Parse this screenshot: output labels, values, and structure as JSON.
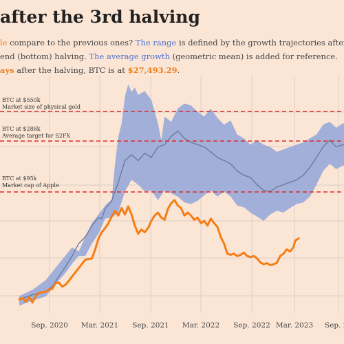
{
  "header": {
    "title": "after the 3rd halving",
    "line1_a": "le",
    "line1_b": " compare to the previous ones? ",
    "line1_c": "The range",
    "line1_d": " is defined by the growth trajectories after",
    "line2_a": "end (bottom) halving. ",
    "line2_b": "The average growth",
    "line2_c": " (geometric mean) is added for reference.",
    "line3_a": "ays",
    "line3_b": " after the halving, BTC is at ",
    "line3_c": "$27,493.29",
    "line3_d": "."
  },
  "colors": {
    "background": "#fbe6d6",
    "range": "#9aaad8",
    "average": "#6b7b9e",
    "current": "#f57d15",
    "reference": "#e02828",
    "grid": "#d9cfc8"
  },
  "chart_data": {
    "type": "line",
    "x_ticks": [
      "Sep. 2020",
      "Mar. 2021",
      "Sep. 2021",
      "Mar. 2022",
      "Sep. 2022",
      "Mar. 2023",
      "Sep. 2"
    ],
    "reference_lines": [
      {
        "line1": "BTC at $550k",
        "line2": "Market size of physical gold"
      },
      {
        "line1": "BTC at $288k",
        "line2": "Average target for S2FX"
      },
      {
        "line1": "BTC at $95k",
        "line2": "Market cap of Apple"
      }
    ],
    "series": [
      {
        "role": "range-upper",
        "values": [
          [
            0,
            8600
          ],
          [
            20,
            9800
          ],
          [
            40,
            12000
          ],
          [
            60,
            17000
          ],
          [
            80,
            24000
          ],
          [
            90,
            22000
          ],
          [
            100,
            30000
          ],
          [
            110,
            40000
          ],
          [
            120,
            48000
          ],
          [
            130,
            58000
          ],
          [
            140,
            66000
          ],
          [
            145,
            140000
          ],
          [
            150,
            250000
          ],
          [
            155,
            330000
          ],
          [
            160,
            580000
          ],
          [
            165,
            750000
          ],
          [
            170,
            640000
          ],
          [
            175,
            700000
          ],
          [
            180,
            600000
          ],
          [
            190,
            650000
          ],
          [
            200,
            540000
          ],
          [
            210,
            330000
          ],
          [
            215,
            230000
          ],
          [
            220,
            380000
          ],
          [
            230,
            340000
          ],
          [
            240,
            450000
          ],
          [
            250,
            500000
          ],
          [
            260,
            480000
          ],
          [
            270,
            420000
          ],
          [
            280,
            380000
          ],
          [
            290,
            450000
          ],
          [
            300,
            370000
          ],
          [
            310,
            320000
          ],
          [
            320,
            350000
          ],
          [
            330,
            260000
          ],
          [
            340,
            240000
          ],
          [
            350,
            210000
          ],
          [
            360,
            230000
          ],
          [
            370,
            210000
          ],
          [
            380,
            200000
          ],
          [
            390,
            180000
          ],
          [
            400,
            190000
          ],
          [
            410,
            200000
          ],
          [
            420,
            210000
          ],
          [
            430,
            220000
          ],
          [
            440,
            240000
          ],
          [
            450,
            260000
          ],
          [
            460,
            320000
          ],
          [
            470,
            340000
          ],
          [
            480,
            300000
          ],
          [
            490,
            330000
          ],
          [
            500,
            320000
          ]
        ]
      },
      {
        "role": "range-lower",
        "values": [
          [
            0,
            7000
          ],
          [
            20,
            7800
          ],
          [
            40,
            8500
          ],
          [
            50,
            10000
          ],
          [
            60,
            12000
          ],
          [
            70,
            14000
          ],
          [
            80,
            17000
          ],
          [
            90,
            20000
          ],
          [
            100,
            20000
          ],
          [
            110,
            26000
          ],
          [
            120,
            32000
          ],
          [
            130,
            44000
          ],
          [
            140,
            45000
          ],
          [
            150,
            50000
          ],
          [
            160,
            78000
          ],
          [
            170,
            100000
          ],
          [
            180,
            90000
          ],
          [
            190,
            78000
          ],
          [
            200,
            80000
          ],
          [
            210,
            65000
          ],
          [
            220,
            80000
          ],
          [
            230,
            75000
          ],
          [
            240,
            70000
          ],
          [
            250,
            62000
          ],
          [
            260,
            60000
          ],
          [
            270,
            64000
          ],
          [
            280,
            72000
          ],
          [
            290,
            80000
          ],
          [
            300,
            70000
          ],
          [
            310,
            78000
          ],
          [
            320,
            70000
          ],
          [
            330,
            58000
          ],
          [
            340,
            56000
          ],
          [
            350,
            50000
          ],
          [
            360,
            46000
          ],
          [
            370,
            42000
          ],
          [
            380,
            48000
          ],
          [
            390,
            52000
          ],
          [
            400,
            50000
          ],
          [
            410,
            55000
          ],
          [
            420,
            60000
          ],
          [
            430,
            62000
          ],
          [
            440,
            70000
          ],
          [
            450,
            90000
          ],
          [
            460,
            120000
          ],
          [
            470,
            140000
          ],
          [
            480,
            125000
          ],
          [
            490,
            135000
          ],
          [
            500,
            130000
          ]
        ]
      },
      {
        "role": "average",
        "values": [
          [
            0,
            8000
          ],
          [
            20,
            8800
          ],
          [
            40,
            9500
          ],
          [
            50,
            10500
          ],
          [
            60,
            13000
          ],
          [
            70,
            16000
          ],
          [
            80,
            20000
          ],
          [
            90,
            26000
          ],
          [
            100,
            30000
          ],
          [
            110,
            38000
          ],
          [
            120,
            45000
          ],
          [
            125,
            44000
          ],
          [
            130,
            54000
          ],
          [
            140,
            64000
          ],
          [
            150,
            95000
          ],
          [
            160,
            150000
          ],
          [
            170,
            170000
          ],
          [
            180,
            150000
          ],
          [
            190,
            175000
          ],
          [
            200,
            160000
          ],
          [
            210,
            200000
          ],
          [
            220,
            210000
          ],
          [
            230,
            250000
          ],
          [
            240,
            280000
          ],
          [
            250,
            240000
          ],
          [
            260,
            220000
          ],
          [
            270,
            210000
          ],
          [
            280,
            200000
          ],
          [
            290,
            180000
          ],
          [
            300,
            160000
          ],
          [
            310,
            150000
          ],
          [
            320,
            140000
          ],
          [
            330,
            120000
          ],
          [
            340,
            110000
          ],
          [
            350,
            105000
          ],
          [
            360,
            90000
          ],
          [
            370,
            80000
          ],
          [
            380,
            78000
          ],
          [
            390,
            86000
          ],
          [
            400,
            90000
          ],
          [
            410,
            95000
          ],
          [
            420,
            100000
          ],
          [
            430,
            110000
          ],
          [
            440,
            130000
          ],
          [
            450,
            160000
          ],
          [
            460,
            200000
          ],
          [
            470,
            230000
          ],
          [
            480,
            200000
          ],
          [
            490,
            210000
          ],
          [
            500,
            200000
          ]
        ]
      },
      {
        "role": "current",
        "values": [
          [
            0,
            8000
          ],
          [
            5,
            8200
          ],
          [
            10,
            7600
          ],
          [
            15,
            8400
          ],
          [
            20,
            7500
          ],
          [
            25,
            8600
          ],
          [
            30,
            9200
          ],
          [
            40,
            9400
          ],
          [
            45,
            9800
          ],
          [
            50,
            10000
          ],
          [
            55,
            11300
          ],
          [
            60,
            11400
          ],
          [
            65,
            10500
          ],
          [
            70,
            10900
          ],
          [
            75,
            11800
          ],
          [
            80,
            13000
          ],
          [
            90,
            15500
          ],
          [
            100,
            18500
          ],
          [
            110,
            19000
          ],
          [
            115,
            23000
          ],
          [
            120,
            29000
          ],
          [
            125,
            33000
          ],
          [
            130,
            36000
          ],
          [
            135,
            40000
          ],
          [
            140,
            46000
          ],
          [
            145,
            52000
          ],
          [
            150,
            47000
          ],
          [
            155,
            55000
          ],
          [
            160,
            48000
          ],
          [
            165,
            57000
          ],
          [
            170,
            48000
          ],
          [
            175,
            38000
          ],
          [
            180,
            32000
          ],
          [
            185,
            35000
          ],
          [
            190,
            33000
          ],
          [
            195,
            36000
          ],
          [
            200,
            42000
          ],
          [
            205,
            47000
          ],
          [
            210,
            50000
          ],
          [
            215,
            45000
          ],
          [
            220,
            43000
          ],
          [
            225,
            54000
          ],
          [
            230,
            61000
          ],
          [
            235,
            65000
          ],
          [
            240,
            58000
          ],
          [
            245,
            55000
          ],
          [
            250,
            47000
          ],
          [
            255,
            50000
          ],
          [
            260,
            47000
          ],
          [
            265,
            43000
          ],
          [
            270,
            45000
          ],
          [
            275,
            40000
          ],
          [
            280,
            42000
          ],
          [
            285,
            38000
          ],
          [
            290,
            44000
          ],
          [
            295,
            40000
          ],
          [
            300,
            37000
          ],
          [
            305,
            30000
          ],
          [
            310,
            26000
          ],
          [
            315,
            21000
          ],
          [
            320,
            20500
          ],
          [
            325,
            21000
          ],
          [
            330,
            20000
          ],
          [
            335,
            20500
          ],
          [
            340,
            21500
          ],
          [
            345,
            20000
          ],
          [
            350,
            19500
          ],
          [
            355,
            20000
          ],
          [
            360,
            19000
          ],
          [
            365,
            17500
          ],
          [
            370,
            16800
          ],
          [
            375,
            17200
          ],
          [
            380,
            16500
          ],
          [
            385,
            16800
          ],
          [
            390,
            17300
          ],
          [
            395,
            20000
          ],
          [
            400,
            21000
          ],
          [
            405,
            23000
          ],
          [
            410,
            22000
          ],
          [
            415,
            24000
          ],
          [
            418,
            27800
          ],
          [
            420,
            28200
          ],
          [
            423,
            29000
          ]
        ]
      }
    ]
  }
}
